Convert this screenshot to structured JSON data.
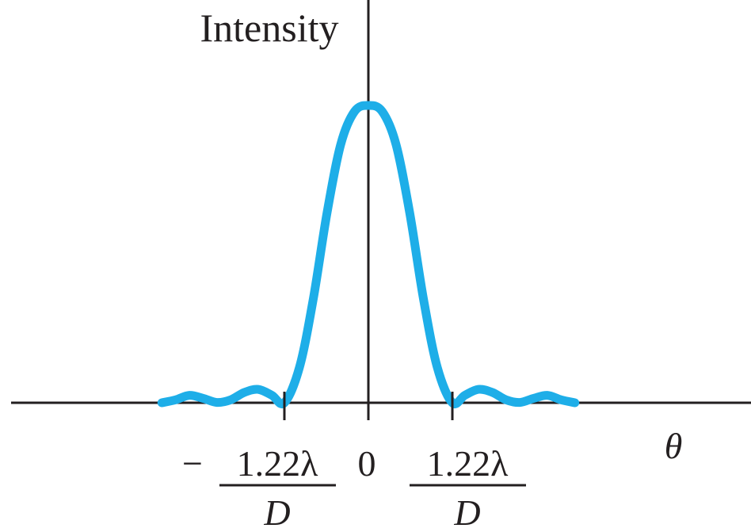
{
  "chart_data": {
    "type": "line",
    "ylabel": "Intensity",
    "xlabel": "θ",
    "xlim": [
      -3.3,
      3.8
    ],
    "ylim": [
      0,
      1
    ],
    "curve_color": "#1eaee8",
    "axis_color": "#231f20",
    "series": [
      {
        "x": [
          -3.0,
          -2.8,
          -2.6,
          -2.4,
          -2.2,
          -2.0,
          -1.8,
          -1.6,
          -1.4,
          -1.22,
          -1.0,
          -0.8,
          -0.6,
          -0.4,
          -0.2,
          0,
          0.2,
          0.4,
          0.6,
          0.8,
          1.0,
          1.22,
          1.4,
          1.6,
          1.8,
          2.0,
          2.2,
          2.4,
          2.6,
          2.8,
          3.0
        ],
        "y": [
          0.0,
          0.01,
          0.025,
          0.015,
          0.001,
          0.01,
          0.035,
          0.045,
          0.025,
          0.0,
          0.12,
          0.35,
          0.64,
          0.87,
          0.98,
          1.0,
          0.98,
          0.87,
          0.64,
          0.35,
          0.12,
          0.0,
          0.025,
          0.045,
          0.035,
          0.01,
          0.001,
          0.015,
          0.025,
          0.01,
          0.0
        ]
      }
    ],
    "ticks": [
      {
        "x": -1.22,
        "numerator": "1.22λ",
        "denominator": "D",
        "sign": "−"
      },
      {
        "x": 0,
        "label": "0"
      },
      {
        "x": 1.22,
        "numerator": "1.22λ",
        "denominator": "D",
        "sign": ""
      }
    ]
  }
}
